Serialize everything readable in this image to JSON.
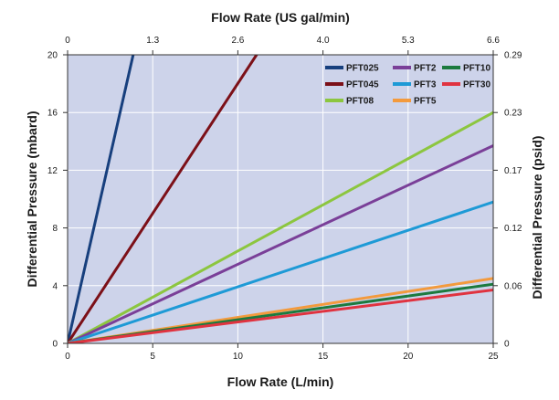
{
  "chart_data": {
    "type": "line",
    "title": "Flow Rate (US gal/min)",
    "xlabel": "Flow Rate (L/min)",
    "ylabel": "Differential Pressure (mbard)",
    "ylabel_right": "Differential Pressure (psid)",
    "xlim": [
      0,
      25
    ],
    "ylim": [
      0,
      20
    ],
    "x_ticks": [
      "0",
      "5",
      "10",
      "15",
      "20",
      "25"
    ],
    "y_ticks": [
      "0",
      "4",
      "8",
      "12",
      "16",
      "20"
    ],
    "top_ticks": [
      "0",
      "1.3",
      "2.6",
      "4.0",
      "5.3",
      "6.6"
    ],
    "right_ticks": [
      "0",
      "0.06",
      "0.12",
      "0.17",
      "0.23",
      "0.29"
    ],
    "grid": true,
    "background": "#cdd3ea",
    "legend_position": "top-right",
    "series": [
      {
        "name": "PFT025",
        "color": "#173f7d",
        "x": [
          0,
          3.85
        ],
        "y": [
          0,
          20
        ]
      },
      {
        "name": "PFT045",
        "color": "#7c1018",
        "x": [
          0,
          11.1
        ],
        "y": [
          0,
          20
        ]
      },
      {
        "name": "PFT08",
        "color": "#8cc63f",
        "x": [
          0,
          25
        ],
        "y": [
          0,
          16
        ]
      },
      {
        "name": "PFT2",
        "color": "#7a3f98",
        "x": [
          0,
          25
        ],
        "y": [
          0,
          13.7
        ]
      },
      {
        "name": "PFT3",
        "color": "#1e9ad6",
        "x": [
          0,
          25
        ],
        "y": [
          0,
          9.8
        ]
      },
      {
        "name": "PFT5",
        "color": "#f39a3d",
        "x": [
          0,
          25
        ],
        "y": [
          0,
          4.5
        ]
      },
      {
        "name": "PFT10",
        "color": "#1c7a3e",
        "x": [
          0,
          25
        ],
        "y": [
          0,
          4.1
        ]
      },
      {
        "name": "PFT30",
        "color": "#e03340",
        "x": [
          0,
          25
        ],
        "y": [
          0,
          3.7
        ]
      }
    ],
    "legend_order": [
      "PFT025",
      "PFT2",
      "PFT10",
      "PFT045",
      "PFT3",
      "PFT30",
      "PFT08",
      "PFT5"
    ]
  }
}
